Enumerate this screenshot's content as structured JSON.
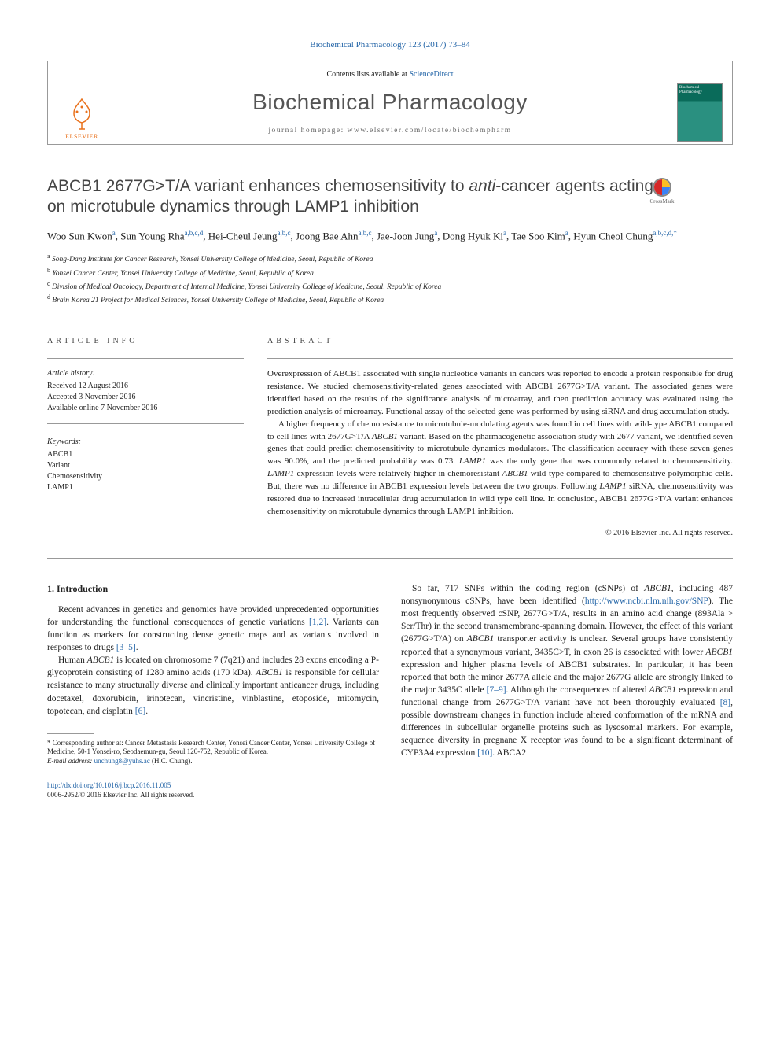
{
  "citation": "Biochemical Pharmacology 123 (2017) 73–84",
  "header": {
    "contents_list": "Contents lists available at ",
    "sciencedirect": "ScienceDirect",
    "journal_name": "Biochemical Pharmacology",
    "homepage_label": "journal homepage: ",
    "homepage_url": "www.elsevier.com/locate/biochempharm",
    "publisher": "ELSEVIER",
    "elsevier_logo_color": "#e9711c",
    "cover_bg_top": "#0a6b5a",
    "cover_bg_bottom": "#2a9080",
    "cover_title": "Biochemical Pharmacology"
  },
  "crossmark_label": "CrossMark",
  "title_pre": "ABCB1 2677G>T/A variant enhances chemosensitivity to ",
  "title_italic": "anti",
  "title_post": "-cancer agents acting on microtubule dynamics through LAMP1 inhibition",
  "authors_html": "Woo Sun Kwon<sup>a</sup>, Sun Young Rha<sup>a,b,c,d</sup>, Hei-Cheul Jeung<sup>a,b,c</sup>, Joong Bae Ahn<sup>a,b,c</sup>, Jae-Joon Jung<sup>a</sup>, Dong Hyuk Ki<sup>a</sup>, Tae Soo Kim<sup>a</sup>, Hyun Cheol Chung<sup>a,b,c,d,*</sup>",
  "affiliations": [
    {
      "sup": "a",
      "text": "Song-Dang Institute for Cancer Research, Yonsei University College of Medicine, Seoul, Republic of Korea"
    },
    {
      "sup": "b",
      "text": "Yonsei Cancer Center, Yonsei University College of Medicine, Seoul, Republic of Korea"
    },
    {
      "sup": "c",
      "text": "Division of Medical Oncology, Department of Internal Medicine, Yonsei University College of Medicine, Seoul, Republic of Korea"
    },
    {
      "sup": "d",
      "text": "Brain Korea 21 Project for Medical Sciences, Yonsei University College of Medicine, Seoul, Republic of Korea"
    }
  ],
  "info": {
    "head": "ARTICLE INFO",
    "history_label": "Article history:",
    "received": "Received 12 August 2016",
    "accepted": "Accepted 3 November 2016",
    "online": "Available online 7 November 2016",
    "keywords_label": "Keywords:",
    "keywords": [
      "ABCB1",
      "Variant",
      "Chemosensitivity",
      "LAMP1"
    ]
  },
  "abstract": {
    "head": "ABSTRACT",
    "p1": "Overexpression of ABCB1 associated with single nucleotide variants in cancers was reported to encode a protein responsible for drug resistance. We studied chemosensitivity-related genes associated with ABCB1 2677G>T/A variant. The associated genes were identified based on the results of the significance analysis of microarray, and then prediction accuracy was evaluated using the prediction analysis of microarray. Functional assay of the selected gene was performed by using siRNA and drug accumulation study.",
    "p2_pre": "A higher frequency of chemoresistance to microtubule-modulating agents was found in cell lines with wild-type ABCB1 compared to cell lines with 2677G>T/A ",
    "p2_it1": "ABCB1",
    "p2_mid1": " variant. Based on the pharmacogenetic association study with 2677 variant, we identified seven genes that could predict chemosensitivity to microtubule dynamics modulators. The classification accuracy with these seven genes was 90.0%, and the predicted probability was 0.73. ",
    "p2_it2": "LAMP1",
    "p2_mid2": " was the only gene that was commonly related to chemosensitivity. ",
    "p2_it3": "LAMP1",
    "p2_mid3": " expression levels were relatively higher in chemoresistant ",
    "p2_it4": "ABCB1",
    "p2_mid4": " wild-type compared to chemosensitive polymorphic cells. But, there was no difference in ABCB1 expression levels between the two groups. Following ",
    "p2_it5": "LAMP1",
    "p2_mid5": " siRNA, chemosensitivity was restored due to increased intracellular drug accumulation in wild type cell line. In conclusion, ABCB1 2677G>T/A variant enhances chemosensitivity on microtubule dynamics through LAMP1 inhibition.",
    "copyright": "© 2016 Elsevier Inc. All rights reserved."
  },
  "body": {
    "intro_head": "1. Introduction",
    "l_p1": "Recent advances in genetics and genomics have provided unprecedented opportunities for understanding the functional consequences of genetic variations [1,2]. Variants can function as markers for constructing dense genetic maps and as variants involved in responses to drugs [3–5].",
    "l_p1_links": {
      "l1": "[1,2]",
      "l2": "[3–5]"
    },
    "l_p2_pre": "Human ",
    "l_p2_it1": "ABCB1",
    "l_p2_mid1": " is located on chromosome 7 (7q21) and includes 28 exons encoding a P-glycoprotein consisting of 1280 amino acids (170 kDa). ",
    "l_p2_it2": "ABCB1",
    "l_p2_mid2": " is responsible for cellular resistance to many structurally diverse and clinically important anticancer drugs, including docetaxel, doxorubicin, irinotecan, vincristine, vinblastine, etoposide, mitomycin, topotecan, and cisplatin ",
    "l_p2_link": "[6]",
    "l_p2_end": ".",
    "r_p1_pre": "So far, 717 SNPs within the coding region (cSNPs) of ",
    "r_p1_it1": "ABCB1",
    "r_p1_mid1": ", including 487 nonsynonymous cSNPs, have been identified (",
    "r_p1_url": "http://www.ncbi.nlm.nih.gov/SNP",
    "r_p1_mid2": "). The most frequently observed cSNP, 2677G>T/A, results in an amino acid change (893Ala > Ser/Thr) in the second transmembrane-spanning domain. However, the effect of this variant (2677G>T/A) on ",
    "r_p1_it2": "ABCB1",
    "r_p1_mid3": " transporter activity is unclear. Several groups have consistently reported that a synonymous variant, 3435C>T, in exon 26 is associated with lower ",
    "r_p1_it3": "ABCB1",
    "r_p1_mid4": " expression and higher plasma levels of ABCB1 substrates. In particular, it has been reported that both the minor 2677A allele and the major 2677G allele are strongly linked to the major 3435C allele ",
    "r_p1_link1": "[7–9]",
    "r_p1_mid5": ". Although the consequences of altered ",
    "r_p1_it4": "ABCB1",
    "r_p1_mid6": " expression and functional change from 2677G>T/A variant have not been thoroughly evaluated ",
    "r_p1_link2": "[8]",
    "r_p1_mid7": ", possible downstream changes in function include altered conformation of the mRNA and differences in subcellular organelle proteins such as lysosomal markers. For example, sequence diversity in pregnane X receptor was found to be a significant determinant of CYP3A4 expression ",
    "r_p1_link3": "[10]",
    "r_p1_mid8": ". ABCA2"
  },
  "footnote": {
    "corr": "* Corresponding author at: Cancer Metastasis Research Center, Yonsei Cancer Center, Yonsei University College of Medicine, 50-1 Yonsei-ro, Seodaemun-gu, Seoul 120-752, Republic of Korea.",
    "email_label": "E-mail address: ",
    "email": "unchung8@yuhs.ac",
    "email_person": " (H.C. Chung)."
  },
  "footer": {
    "doi_label": "http://dx.doi.org/10.1016/j.bcp.2016.11.005",
    "issn_line": "0006-2952/© 2016 Elsevier Inc. All rights reserved."
  },
  "colors": {
    "link": "#2566a8",
    "text": "#222222",
    "border": "#999999",
    "elsevier": "#e9711c"
  }
}
